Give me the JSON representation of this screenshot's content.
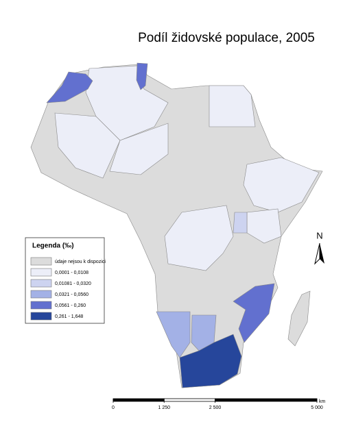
{
  "title": "Podíl židovské populace, 2005",
  "legend": {
    "title": "Legenda (‰)",
    "items": [
      {
        "label": "údaje nejsou k dispozici",
        "color": "#dcdcdc"
      },
      {
        "label": "0,0001 - 0,0108",
        "color": "#eceef8"
      },
      {
        "label": "0,01081 - 0,0320",
        "color": "#cdd3f0"
      },
      {
        "label": "0,0321 - 0,0560",
        "color": "#a3b1e6"
      },
      {
        "label": "0,0561 - 0,260",
        "color": "#6270cf"
      },
      {
        "label": "0,261 - 1,648",
        "color": "#26469b"
      }
    ]
  },
  "north": "N",
  "scale_bar": {
    "unit": "km",
    "ticks": [
      0,
      {
        "value": 1250,
        "label": "1 250"
      },
      {
        "value": 2500,
        "label": "2 500"
      },
      {
        "value": 5000,
        "label": "5 000"
      }
    ]
  }
}
